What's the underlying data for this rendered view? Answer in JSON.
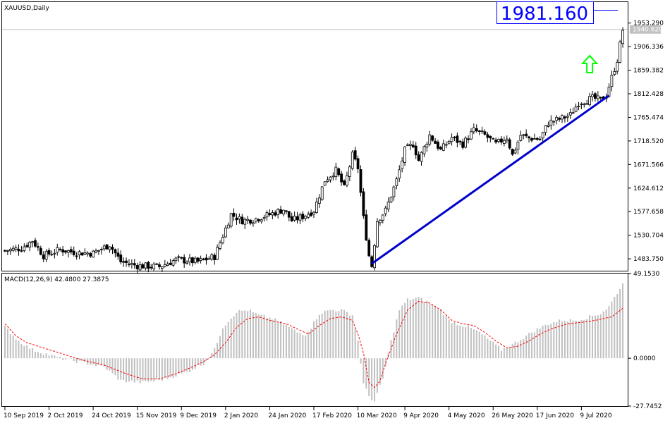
{
  "symbol_title": "XAUUSD,Daily",
  "big_price_label": "1981.160",
  "bid_label": "1940.620",
  "macd_title": "MACD(12,26,9) 42.4800 27.3875",
  "colors": {
    "trendline": "#0000cc",
    "arrow": "#00ff00",
    "macd_signal": "#ff0000",
    "macd_hist": "#c0c0c0",
    "candles": "#000000"
  },
  "chart_data": [
    {
      "type": "candlestick",
      "ylim": [
        1460,
        1995
      ],
      "y_ticks": [
        "1953.290",
        "1906.336",
        "1859.382",
        "1812.428",
        "1765.474",
        "1718.520",
        "1671.566",
        "1624.612",
        "1577.658",
        "1530.704",
        "1483.750"
      ],
      "x_ticks": [
        "10 Sep 2019",
        "2 Oct 2019",
        "24 Oct 2019",
        "15 Nov 2019",
        "9 Dec 2019",
        "2 Jan 2020",
        "24 Jan 2020",
        "17 Feb 2020",
        "10 Mar 2020",
        "9 Apr 2020",
        "4 May 2020",
        "26 May 2020",
        "17 Jun 2020",
        "9 Jul 2020"
      ],
      "x_tick_bars": [
        0,
        16,
        32,
        48,
        64,
        80,
        96,
        112,
        128,
        145,
        161,
        177,
        193,
        209
      ],
      "close_path": [
        [
          0,
          1500
        ],
        [
          6,
          1505
        ],
        [
          10,
          1520
        ],
        [
          14,
          1490
        ],
        [
          20,
          1502
        ],
        [
          26,
          1496
        ],
        [
          32,
          1495
        ],
        [
          38,
          1512
        ],
        [
          42,
          1478
        ],
        [
          48,
          1470
        ],
        [
          56,
          1468
        ],
        [
          62,
          1482
        ],
        [
          70,
          1478
        ],
        [
          76,
          1488
        ],
        [
          82,
          1572
        ],
        [
          86,
          1560
        ],
        [
          90,
          1562
        ],
        [
          96,
          1572
        ],
        [
          101,
          1582
        ],
        [
          104,
          1560
        ],
        [
          108,
          1568
        ],
        [
          112,
          1580
        ],
        [
          116,
          1640
        ],
        [
          120,
          1660
        ],
        [
          123,
          1625
        ],
        [
          126,
          1690
        ],
        [
          128,
          1665
        ],
        [
          130,
          1565
        ],
        [
          132,
          1490
        ],
        [
          133,
          1470
        ],
        [
          135,
          1560
        ],
        [
          138,
          1580
        ],
        [
          142,
          1640
        ],
        [
          145,
          1700
        ],
        [
          148,
          1712
        ],
        [
          150,
          1680
        ],
        [
          154,
          1730
        ],
        [
          158,
          1700
        ],
        [
          162,
          1725
        ],
        [
          166,
          1712
        ],
        [
          170,
          1740
        ],
        [
          174,
          1730
        ],
        [
          178,
          1712
        ],
        [
          182,
          1726
        ],
        [
          184,
          1690
        ],
        [
          187,
          1730
        ],
        [
          190,
          1724
        ],
        [
          194,
          1722
        ],
        [
          197,
          1755
        ],
        [
          201,
          1762
        ],
        [
          205,
          1770
        ],
        [
          208,
          1795
        ],
        [
          211,
          1800
        ],
        [
          213,
          1804
        ],
        [
          216,
          1800
        ],
        [
          218,
          1810
        ],
        [
          220,
          1845
        ],
        [
          222,
          1880
        ],
        [
          223,
          1910
        ],
        [
          224,
          1940
        ]
      ],
      "trendline": {
        "start": [
          133,
          1474
        ],
        "end": [
          219,
          1809
        ]
      },
      "horizontal_line": 1940.62,
      "price_label_value": 1981.16,
      "arrow_at": [
        212,
        1870
      ]
    },
    {
      "type": "macd",
      "params": "MACD(12,26,9)",
      "macd_value": 42.48,
      "signal_value": 27.3875,
      "ylim": [
        -27.7452,
        49.153
      ],
      "y_ticks": [
        "49.1530",
        "0.0000",
        "-27.7452"
      ],
      "macd_path": [
        [
          0,
          18
        ],
        [
          5,
          10
        ],
        [
          10,
          5
        ],
        [
          20,
          0
        ],
        [
          30,
          -3
        ],
        [
          36,
          -5
        ],
        [
          42,
          -13
        ],
        [
          50,
          -14
        ],
        [
          58,
          -12
        ],
        [
          66,
          -8
        ],
        [
          72,
          -3
        ],
        [
          76,
          5
        ],
        [
          79,
          18
        ],
        [
          84,
          27
        ],
        [
          88,
          28
        ],
        [
          92,
          25
        ],
        [
          97,
          23
        ],
        [
          102,
          19
        ],
        [
          106,
          15
        ],
        [
          109,
          14
        ],
        [
          111,
          18
        ],
        [
          114,
          26
        ],
        [
          118,
          28
        ],
        [
          122,
          28
        ],
        [
          126,
          25
        ],
        [
          128,
          10
        ],
        [
          130,
          -15
        ],
        [
          132,
          -22
        ],
        [
          134,
          -25
        ],
        [
          137,
          -12
        ],
        [
          140,
          10
        ],
        [
          143,
          28
        ],
        [
          146,
          34
        ],
        [
          150,
          35
        ],
        [
          154,
          32
        ],
        [
          158,
          28
        ],
        [
          161,
          22
        ],
        [
          164,
          20
        ],
        [
          168,
          18
        ],
        [
          172,
          15
        ],
        [
          176,
          10
        ],
        [
          180,
          5
        ],
        [
          184,
          8
        ],
        [
          188,
          12
        ],
        [
          192,
          16
        ],
        [
          197,
          20
        ],
        [
          202,
          22
        ],
        [
          207,
          22
        ],
        [
          212,
          24
        ],
        [
          216,
          26
        ],
        [
          219,
          30
        ],
        [
          222,
          38
        ],
        [
          224,
          43
        ]
      ],
      "signal_path": [
        [
          0,
          20
        ],
        [
          4,
          13
        ],
        [
          8,
          9
        ],
        [
          12,
          7
        ],
        [
          20,
          3
        ],
        [
          28,
          -1
        ],
        [
          36,
          -4
        ],
        [
          44,
          -9
        ],
        [
          50,
          -12
        ],
        [
          56,
          -12
        ],
        [
          62,
          -9
        ],
        [
          68,
          -5
        ],
        [
          72,
          -2
        ],
        [
          76,
          2
        ],
        [
          80,
          9
        ],
        [
          84,
          18
        ],
        [
          88,
          23
        ],
        [
          92,
          24
        ],
        [
          96,
          22
        ],
        [
          102,
          20
        ],
        [
          106,
          17
        ],
        [
          110,
          14
        ],
        [
          114,
          19
        ],
        [
          118,
          23
        ],
        [
          122,
          24
        ],
        [
          126,
          22
        ],
        [
          128,
          14
        ],
        [
          130,
          3
        ],
        [
          132,
          -14
        ],
        [
          134,
          -17
        ],
        [
          136,
          -13
        ],
        [
          138,
          -3
        ],
        [
          142,
          14
        ],
        [
          146,
          28
        ],
        [
          150,
          33
        ],
        [
          154,
          32
        ],
        [
          158,
          28
        ],
        [
          162,
          22
        ],
        [
          166,
          20
        ],
        [
          170,
          19
        ],
        [
          174,
          15
        ],
        [
          178,
          10
        ],
        [
          182,
          6
        ],
        [
          186,
          7
        ],
        [
          190,
          10
        ],
        [
          194,
          14
        ],
        [
          198,
          17
        ],
        [
          204,
          20
        ],
        [
          210,
          21
        ],
        [
          214,
          22
        ],
        [
          220,
          24
        ],
        [
          224,
          29
        ]
      ]
    }
  ]
}
